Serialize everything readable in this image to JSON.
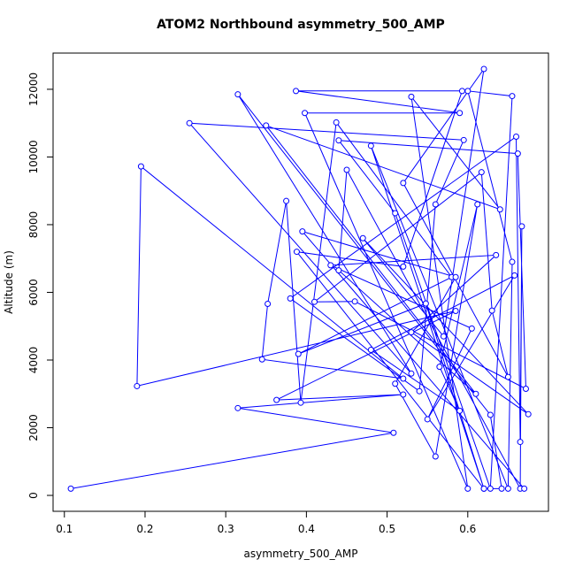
{
  "chart_data": {
    "type": "line",
    "title": "ATOM2 Northbound asymmetry_500_AMP",
    "x_label": "asymmetry_500_AMP",
    "y_label": "Altitude (m)",
    "x": [
      0.108,
      0.508,
      0.315,
      0.52,
      0.363,
      0.585,
      0.19,
      0.195,
      0.52,
      0.345,
      0.352,
      0.375,
      0.393,
      0.437,
      0.58,
      0.39,
      0.548,
      0.62,
      0.642,
      0.628,
      0.315,
      0.53,
      0.255,
      0.595,
      0.56,
      0.54,
      0.38,
      0.66,
      0.665,
      0.667,
      0.665,
      0.45,
      0.44,
      0.61,
      0.35,
      0.64,
      0.53,
      0.6,
      0.398,
      0.59,
      0.387,
      0.593,
      0.52,
      0.388,
      0.62,
      0.48,
      0.65,
      0.655,
      0.6,
      0.655,
      0.628,
      0.51,
      0.44,
      0.662,
      0.672,
      0.46,
      0.41,
      0.617,
      0.63,
      0.65,
      0.52,
      0.62,
      0.57,
      0.47,
      0.675,
      0.53,
      0.635,
      0.43,
      0.605,
      0.55,
      0.658,
      0.48,
      0.59,
      0.565,
      0.612,
      0.56,
      0.51,
      0.585,
      0.395,
      0.67
    ],
    "series": [
      {
        "color": "#0000ff",
        "values": [
          200,
          1850,
          2580,
          2980,
          2820,
          5450,
          3230,
          9720,
          3450,
          4020,
          5660,
          8700,
          2740,
          11020,
          6450,
          4180,
          5670,
          200,
          200,
          2380,
          11850,
          3600,
          11000,
          10500,
          8600,
          3080,
          5820,
          10600,
          1580,
          7950,
          200,
          9620,
          6650,
          3000,
          10930,
          8450,
          11780,
          200,
          11300,
          11300,
          11950,
          11950,
          6760,
          7200,
          200,
          10330,
          200,
          6900,
          11950,
          11800,
          200,
          8340,
          10490,
          10100,
          3150,
          5730,
          5720,
          9550,
          5460,
          3500,
          9230,
          12600,
          4700,
          7600,
          2400,
          4820,
          7100,
          6800,
          4930,
          2250,
          6500,
          4300,
          2500,
          3800,
          8600,
          1150,
          3300,
          6450,
          7800,
          200
        ]
      }
    ],
    "xlim": [
      0.086,
      0.7
    ],
    "ylim": [
      -470,
      13070
    ],
    "xticks": [
      0.1,
      0.2,
      0.3,
      0.4,
      0.5,
      0.6
    ],
    "yticks": [
      0,
      2000,
      4000,
      6000,
      8000,
      10000,
      12000
    ]
  }
}
